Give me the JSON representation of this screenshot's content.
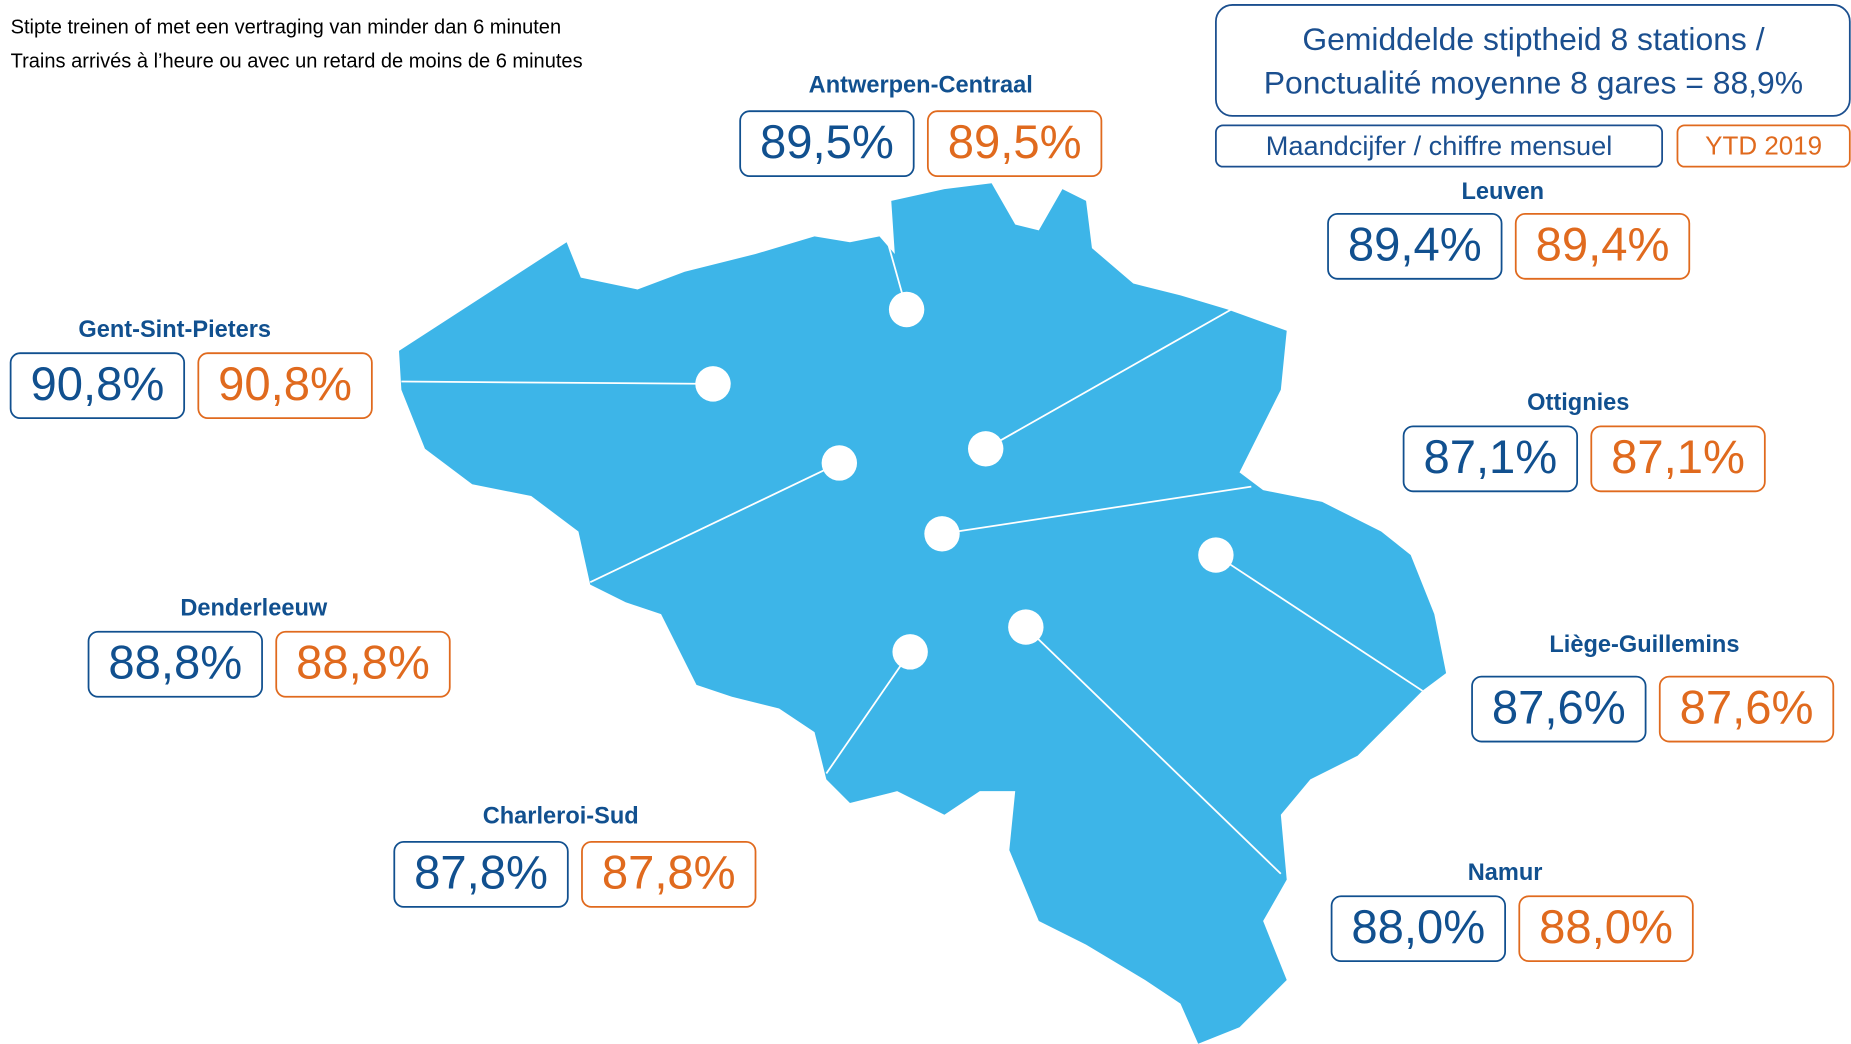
{
  "header": {
    "line_nl": "Stipte treinen of met een vertraging van minder dan 6 minuten",
    "line_fr": "Trains arrivés à l’heure ou avec un retard de moins de 6 minutes"
  },
  "summary": {
    "line1": "Gemiddelde stiptheid 8 stations /",
    "line2": "Ponctualité moyenne 8 gares = 88,9%"
  },
  "legend": {
    "monthly": "Maandcijfer / chiffre mensuel",
    "ytd": "YTD 2019"
  },
  "stations": [
    {
      "name": "Antwerpen-Centraal",
      "monthly": "89,5%",
      "ytd": "89,5%"
    },
    {
      "name": "Leuven",
      "monthly": "89,4%",
      "ytd": "89,4%"
    },
    {
      "name": "Gent-Sint-Pieters",
      "monthly": "90,8%",
      "ytd": "90,8%"
    },
    {
      "name": "Ottignies",
      "monthly": "87,1%",
      "ytd": "87,1%"
    },
    {
      "name": "Denderleeuw",
      "monthly": "88,8%",
      "ytd": "88,8%"
    },
    {
      "name": "Liège-Guillemins",
      "monthly": "87,6%",
      "ytd": "87,6%"
    },
    {
      "name": "Charleroi-Sud",
      "monthly": "87,8%",
      "ytd": "87,8%"
    },
    {
      "name": "Namur",
      "monthly": "88,0%",
      "ytd": "88,0%"
    }
  ]
}
